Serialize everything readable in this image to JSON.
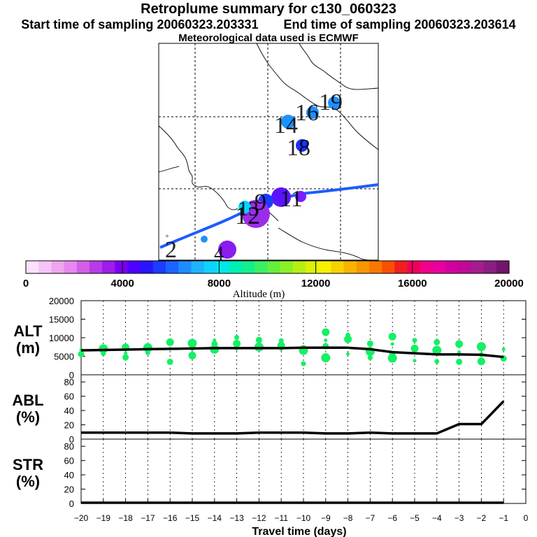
{
  "header": {
    "title": "Retroplume summary for c130_060323",
    "start_label": "Start time of sampling 20060323.203331",
    "end_label": "End time of sampling 20060323.203614",
    "met_label": "Meteorological data used is ECMWF"
  },
  "map": {
    "labels": [
      {
        "text": "19",
        "color": "#1e90ff"
      },
      {
        "text": "16",
        "color": "#1e90ff"
      },
      {
        "text": "14",
        "color": "#1e90ff"
      },
      {
        "text": "18",
        "color": "#1c2fff"
      },
      {
        "text": "11",
        "color": "#7a1cff"
      },
      {
        "text": "12",
        "color": "#8a2be2"
      },
      {
        "text": "13",
        "color": "#00d5ff"
      },
      {
        "text": "9",
        "color": "#1e5fff"
      },
      {
        "text": "2",
        "color": "#1e90ff"
      },
      {
        "text": "4",
        "color": "#7a1cff"
      }
    ]
  },
  "colorbar": {
    "tick_labels": [
      "0",
      "4000",
      "8000",
      "12000",
      "16000",
      "20000"
    ],
    "title": "Altitude (m)",
    "colors": [
      "#fce0fc",
      "#f6c4f6",
      "#eea6ee",
      "#e887f0",
      "#d35fe8",
      "#b93be8",
      "#9c1ee8",
      "#7a00f0",
      "#5000ff",
      "#2a14ff",
      "#1c3cff",
      "#1c64ff",
      "#1e8cff",
      "#1eb4ff",
      "#10d2ff",
      "#00e8e8",
      "#00f0b4",
      "#14f08c",
      "#3cf064",
      "#64f03c",
      "#8cf028",
      "#b4f014",
      "#dcf00a",
      "#f8f000",
      "#f8d200",
      "#f8b400",
      "#f89600",
      "#f87800",
      "#f85000",
      "#f01e1e",
      "#f0005a",
      "#f0008c",
      "#e6009e",
      "#d2009e",
      "#be0a96",
      "#a51e8c",
      "#8c1e82",
      "#73146e"
    ]
  },
  "chart_data": [
    {
      "type": "line",
      "title": "ALT",
      "ylabel": "ALT (m)",
      "ylim": [
        0,
        20000
      ],
      "yticks": [
        "20000",
        "15000",
        "10000",
        "5000",
        "0"
      ],
      "x": [
        -20,
        -19,
        -18,
        -17,
        -16,
        -15,
        -14,
        -13,
        -12,
        -11,
        -10,
        -9,
        -8,
        -7,
        -6,
        -5,
        -4,
        -3,
        -2,
        -1
      ],
      "values": [
        6600,
        6700,
        6800,
        6900,
        7000,
        7100,
        7200,
        7200,
        7200,
        7200,
        7300,
        7300,
        7300,
        6900,
        6100,
        5800,
        5500,
        5500,
        5400,
        4800
      ],
      "scatter": [
        [
          -20,
          6800
        ],
        [
          -20,
          5600
        ],
        [
          -19,
          7000
        ],
        [
          -19,
          5700
        ],
        [
          -18,
          7400
        ],
        [
          -18,
          5800
        ],
        [
          -18,
          4700
        ],
        [
          -17,
          7300
        ],
        [
          -17,
          6000
        ],
        [
          -16,
          8800
        ],
        [
          -16,
          7000
        ],
        [
          -16,
          3500
        ],
        [
          -15,
          8500
        ],
        [
          -15,
          7100
        ],
        [
          -15,
          5200
        ],
        [
          -14,
          9300
        ],
        [
          -14,
          8300
        ],
        [
          -14,
          6900
        ],
        [
          -13,
          10100
        ],
        [
          -13,
          8400
        ],
        [
          -13,
          7000
        ],
        [
          -12,
          9400
        ],
        [
          -12,
          7500
        ],
        [
          -11,
          9200
        ],
        [
          -11,
          7900
        ],
        [
          -11,
          6900
        ],
        [
          -10,
          7200
        ],
        [
          -10,
          6600
        ],
        [
          -10,
          3000
        ],
        [
          -9,
          11500
        ],
        [
          -9,
          9300
        ],
        [
          -9,
          7700
        ],
        [
          -9,
          4600
        ],
        [
          -8,
          10700
        ],
        [
          -8,
          9600
        ],
        [
          -8,
          5600
        ],
        [
          -7,
          8400
        ],
        [
          -7,
          6300
        ],
        [
          -7,
          4600
        ],
        [
          -6,
          10300
        ],
        [
          -6,
          8300
        ],
        [
          -6,
          5400
        ],
        [
          -6,
          4500
        ],
        [
          -5,
          9300
        ],
        [
          -5,
          7100
        ],
        [
          -5,
          3800
        ],
        [
          -4,
          8800
        ],
        [
          -4,
          6600
        ],
        [
          -4,
          3600
        ],
        [
          -3,
          8300
        ],
        [
          -3,
          6100
        ],
        [
          -3,
          3500
        ],
        [
          -2,
          7600
        ],
        [
          -2,
          5400
        ],
        [
          -2,
          3600
        ],
        [
          -1,
          6900
        ],
        [
          -1,
          4400
        ]
      ],
      "scatter_color": "#14f064"
    },
    {
      "type": "line",
      "title": "ABL",
      "ylabel": "ABL (%)",
      "ylim": [
        0,
        90
      ],
      "yticks": [
        "80",
        "60",
        "40",
        "20",
        "0"
      ],
      "x": [
        -20,
        -19,
        -18,
        -17,
        -16,
        -15,
        -14,
        -13,
        -12,
        -11,
        -10,
        -9,
        -8,
        -7,
        -6,
        -5,
        -4,
        -3,
        -2,
        -1
      ],
      "values": [
        9,
        9,
        9,
        9,
        9,
        8,
        8,
        8,
        9,
        9,
        9,
        8,
        8,
        9,
        8,
        8,
        8,
        21,
        21,
        53
      ]
    },
    {
      "type": "line",
      "title": "STR",
      "ylabel": "STR (%)",
      "ylim": [
        0,
        90
      ],
      "yticks": [
        "80",
        "60",
        "40",
        "20",
        "0"
      ],
      "x": [
        -20,
        -19,
        -18,
        -17,
        -16,
        -15,
        -14,
        -13,
        -12,
        -11,
        -10,
        -9,
        -8,
        -7,
        -6,
        -5,
        -4,
        -3,
        -2,
        -1
      ],
      "values": [
        1,
        1,
        1,
        1,
        1,
        1,
        1,
        1,
        1,
        1,
        1,
        1,
        1,
        1,
        1,
        1,
        1,
        1,
        1,
        1
      ],
      "xlabel": "Travel time (days)",
      "xticks": [
        "−20",
        "−19",
        "−18",
        "−17",
        "−16",
        "−15",
        "−14",
        "−13",
        "−12",
        "−11",
        "−10",
        "−9",
        "−8",
        "−7",
        "−6",
        "−5",
        "−4",
        "−3",
        "−2",
        "−1",
        "0"
      ],
      "xlim": [
        -20,
        0
      ]
    }
  ]
}
